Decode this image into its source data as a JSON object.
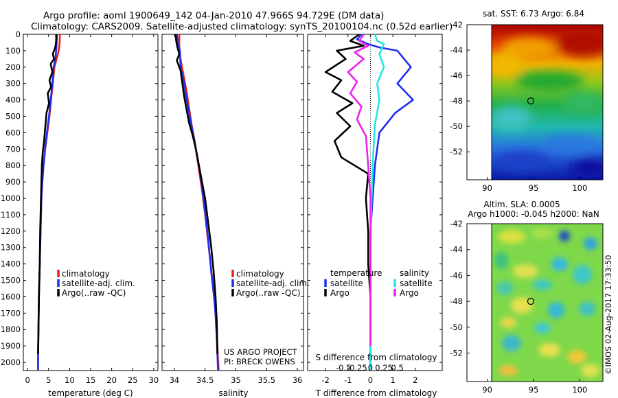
{
  "header": {
    "line1": "Argo profile: aoml 1900649_142 04-Jan-2010 47.966S 94.729E (DM data)",
    "line2": "Climatology: CARS2009. Satellite-adjusted climatology: synTS_20100104.nc (0.52d earlier)"
  },
  "credits": {
    "project": "US ARGO PROJECT",
    "pi": "PI: BRECK OWENS",
    "stamp": "©IMOS 02-Aug-2017 17:33:50"
  },
  "colors": {
    "climatology": "#ee1c1c",
    "satellite": "#1e2ef0",
    "argo": "#000000",
    "sal_satellite": "#22e6e6",
    "sal_argo": "#ee22ee"
  },
  "chart_data": [
    {
      "id": "temperature",
      "type": "line",
      "xlabel": "temperature (deg C)",
      "ylabel": "",
      "xlim": [
        -1,
        31
      ],
      "ylim": [
        2050,
        0
      ],
      "xticks": [
        0,
        5,
        10,
        15,
        20,
        25,
        30
      ],
      "yticks": [
        0,
        100,
        200,
        300,
        400,
        500,
        600,
        700,
        800,
        900,
        1000,
        1100,
        1200,
        1300,
        1400,
        1500,
        1600,
        1700,
        1800,
        1900,
        2000
      ],
      "legend": [
        "climatology",
        "satellite-adj. clim.",
        "Argo(..raw -QC)"
      ],
      "legend_position": "lower-center",
      "series": [
        {
          "name": "climatology",
          "color": "#ee1c1c",
          "points": [
            [
              7.7,
              0
            ],
            [
              7.6,
              60
            ],
            [
              7.4,
              100
            ],
            [
              6.9,
              150
            ],
            [
              6.4,
              200
            ],
            [
              6.0,
              300
            ],
            [
              5.6,
              400
            ],
            [
              5.2,
              500
            ],
            [
              4.7,
              600
            ],
            [
              4.2,
              700
            ],
            [
              3.8,
              800
            ],
            [
              3.5,
              900
            ],
            [
              3.3,
              1000
            ],
            [
              3.1,
              1200
            ],
            [
              2.9,
              1400
            ],
            [
              2.7,
              1600
            ],
            [
              2.6,
              1800
            ],
            [
              2.5,
              2000
            ],
            [
              2.5,
              2050
            ]
          ]
        },
        {
          "name": "satellite-adj. clim.",
          "color": "#1e2ef0",
          "points": [
            [
              7.0,
              0
            ],
            [
              6.9,
              60
            ],
            [
              6.8,
              100
            ],
            [
              6.6,
              150
            ],
            [
              6.2,
              200
            ],
            [
              5.9,
              300
            ],
            [
              5.5,
              400
            ],
            [
              5.1,
              500
            ],
            [
              4.6,
              600
            ],
            [
              4.2,
              700
            ],
            [
              3.8,
              800
            ],
            [
              3.5,
              900
            ],
            [
              3.3,
              1000
            ],
            [
              3.1,
              1200
            ],
            [
              2.9,
              1400
            ],
            [
              2.7,
              1600
            ],
            [
              2.6,
              1800
            ],
            [
              2.5,
              2000
            ],
            [
              2.5,
              2050
            ]
          ]
        },
        {
          "name": "Argo(..raw -QC)",
          "color": "#000000",
          "points": [
            [
              6.8,
              0
            ],
            [
              6.8,
              40
            ],
            [
              6.6,
              80
            ],
            [
              6.0,
              120
            ],
            [
              6.3,
              150
            ],
            [
              5.5,
              180
            ],
            [
              5.9,
              230
            ],
            [
              5.2,
              280
            ],
            [
              5.6,
              320
            ],
            [
              4.8,
              360
            ],
            [
              5.1,
              420
            ],
            [
              4.5,
              480
            ],
            [
              4.3,
              540
            ],
            [
              4.1,
              600
            ],
            [
              3.9,
              660
            ],
            [
              3.6,
              720
            ],
            [
              3.4,
              800
            ],
            [
              3.3,
              900
            ],
            [
              3.2,
              1000
            ],
            [
              3.0,
              1200
            ],
            [
              2.9,
              1400
            ],
            [
              2.7,
              1600
            ],
            [
              2.6,
              1800
            ],
            [
              2.5,
              1950
            ]
          ]
        }
      ]
    },
    {
      "id": "salinity",
      "type": "line",
      "xlabel": "salinity",
      "ylabel": "",
      "xlim": [
        33.8,
        36.1
      ],
      "ylim": [
        2050,
        0
      ],
      "xticks": [
        34,
        34.5,
        35,
        35.5,
        36
      ],
      "legend": [
        "climatology",
        "satellite-adj. clim.",
        "Argo(..raw -QC)"
      ],
      "legend_position": "lower-right",
      "series": [
        {
          "name": "climatology",
          "color": "#ee1c1c",
          "points": [
            [
              34.08,
              0
            ],
            [
              34.08,
              80
            ],
            [
              34.1,
              150
            ],
            [
              34.15,
              250
            ],
            [
              34.2,
              350
            ],
            [
              34.24,
              450
            ],
            [
              34.28,
              550
            ],
            [
              34.33,
              650
            ],
            [
              34.37,
              750
            ],
            [
              34.41,
              850
            ],
            [
              34.45,
              950
            ],
            [
              34.5,
              1100
            ],
            [
              34.56,
              1300
            ],
            [
              34.62,
              1500
            ],
            [
              34.67,
              1700
            ],
            [
              34.7,
              1900
            ],
            [
              34.72,
              2050
            ]
          ]
        },
        {
          "name": "satellite-adj. clim.",
          "color": "#1e2ef0",
          "points": [
            [
              34.04,
              0
            ],
            [
              34.06,
              60
            ],
            [
              34.09,
              100
            ],
            [
              34.1,
              200
            ],
            [
              34.16,
              300
            ],
            [
              34.2,
              400
            ],
            [
              34.25,
              500
            ],
            [
              34.3,
              600
            ],
            [
              34.35,
              700
            ],
            [
              34.4,
              800
            ],
            [
              34.44,
              900
            ],
            [
              34.49,
              1050
            ],
            [
              34.55,
              1250
            ],
            [
              34.6,
              1450
            ],
            [
              34.66,
              1650
            ],
            [
              34.69,
              1850
            ],
            [
              34.71,
              2050
            ]
          ]
        },
        {
          "name": "Argo(..raw -QC)",
          "color": "#000000",
          "points": [
            [
              34.02,
              0
            ],
            [
              34.03,
              40
            ],
            [
              34.05,
              80
            ],
            [
              34.08,
              120
            ],
            [
              34.04,
              160
            ],
            [
              34.1,
              220
            ],
            [
              34.13,
              300
            ],
            [
              34.16,
              380
            ],
            [
              34.2,
              460
            ],
            [
              34.24,
              540
            ],
            [
              34.3,
              620
            ],
            [
              34.35,
              700
            ],
            [
              34.4,
              800
            ],
            [
              34.45,
              900
            ],
            [
              34.5,
              1000
            ],
            [
              34.55,
              1150
            ],
            [
              34.6,
              1300
            ],
            [
              34.64,
              1450
            ],
            [
              34.67,
              1600
            ],
            [
              34.69,
              1750
            ],
            [
              34.7,
              1950
            ]
          ]
        }
      ]
    },
    {
      "id": "differences",
      "type": "line",
      "xlabel": "T difference from climatology",
      "top_label": "S difference from climatology",
      "xlim": [
        -2.8,
        3.2
      ],
      "ylim": [
        2050,
        0
      ],
      "xticks": [
        -2,
        -1,
        0,
        1,
        2
      ],
      "top_ticks": [
        -0.5,
        -0.25,
        0,
        0.25,
        0.5
      ],
      "top_tick_labels": [
        "-0.5",
        "-0.25",
        "0",
        "0.25",
        "0.5"
      ],
      "legend_titles": [
        "temperature",
        "salinity"
      ],
      "legend": [
        "satellite",
        "Argo",
        "satellite",
        "Argo"
      ],
      "legend_position": "lower-center",
      "series": [
        {
          "name": "satellite",
          "group": "temperature",
          "color": "#1e2ef0",
          "points": [
            [
              -0.4,
              0
            ],
            [
              -0.6,
              30
            ],
            [
              -0.1,
              60
            ],
            [
              0.4,
              80
            ],
            [
              1.2,
              100
            ],
            [
              1.8,
              200
            ],
            [
              1.2,
              300
            ],
            [
              1.9,
              400
            ],
            [
              1.1,
              480
            ],
            [
              0.4,
              600
            ],
            [
              0.2,
              800
            ],
            [
              0.1,
              1000
            ],
            [
              0.0,
              1200
            ],
            [
              0.0,
              1500
            ],
            [
              0.0,
              1800
            ],
            [
              0.0,
              2050
            ]
          ]
        },
        {
          "name": "Argo",
          "group": "temperature",
          "color": "#000000",
          "points": [
            [
              -0.5,
              0
            ],
            [
              -0.9,
              40
            ],
            [
              -0.3,
              70
            ],
            [
              -1.5,
              100
            ],
            [
              -1.1,
              150
            ],
            [
              -2.0,
              230
            ],
            [
              -1.3,
              280
            ],
            [
              -1.7,
              350
            ],
            [
              -0.8,
              420
            ],
            [
              -1.5,
              480
            ],
            [
              -0.9,
              560
            ],
            [
              -1.6,
              650
            ],
            [
              -1.3,
              750
            ],
            [
              -0.1,
              850
            ],
            [
              -0.2,
              1000
            ],
            [
              -0.1,
              1200
            ],
            [
              -0.1,
              1400
            ],
            [
              0.0,
              1600
            ],
            [
              0.0,
              1800
            ],
            [
              0.0,
              2000
            ]
          ]
        },
        {
          "name": "satellite",
          "group": "salinity",
          "color": "#22e6e6",
          "points": [
            [
              0.2,
              0
            ],
            [
              0.3,
              40
            ],
            [
              0.6,
              60
            ],
            [
              0.4,
              120
            ],
            [
              0.6,
              200
            ],
            [
              0.3,
              300
            ],
            [
              0.4,
              400
            ],
            [
              0.2,
              550
            ],
            [
              0.1,
              800
            ],
            [
              0.05,
              1000
            ],
            [
              0.0,
              1300
            ],
            [
              0.0,
              1600
            ],
            [
              0.0,
              2050
            ]
          ]
        },
        {
          "name": "Argo",
          "group": "salinity",
          "color": "#ee22ee",
          "points": [
            [
              -0.3,
              0
            ],
            [
              -0.5,
              40
            ],
            [
              -0.1,
              70
            ],
            [
              -0.7,
              110
            ],
            [
              -0.3,
              150
            ],
            [
              -1.0,
              230
            ],
            [
              -0.6,
              290
            ],
            [
              -0.9,
              360
            ],
            [
              -0.4,
              440
            ],
            [
              -0.6,
              520
            ],
            [
              -0.2,
              620
            ],
            [
              -0.1,
              800
            ],
            [
              0.0,
              1000
            ],
            [
              0.0,
              1300
            ],
            [
              0.0,
              1600
            ],
            [
              0.0,
              1900
            ]
          ]
        }
      ]
    },
    {
      "id": "sst-map",
      "type": "heatmap",
      "title": "sat. SST: 6.73 Argo: 6.84",
      "xticks": [
        90,
        95,
        100
      ],
      "yticks": [
        -42,
        -44,
        -46,
        -48,
        -50,
        -52
      ],
      "xlim": [
        87.8,
        102.5
      ],
      "ylim": [
        -54.2,
        -42
      ],
      "marker": {
        "lon": 94.7,
        "lat": -48.0
      }
    },
    {
      "id": "sla-map",
      "type": "heatmap",
      "title": "Altim. SLA: 0.0005",
      "subtitle": "Argo h1000: -0.045 h2000: NaN",
      "xticks": [
        90,
        95,
        100
      ],
      "yticks": [
        -42,
        -44,
        -46,
        -48,
        -50,
        -52
      ],
      "xlim": [
        87.8,
        102.5
      ],
      "ylim": [
        -54.2,
        -42
      ],
      "marker": {
        "lon": 94.7,
        "lat": -48.0
      }
    }
  ]
}
